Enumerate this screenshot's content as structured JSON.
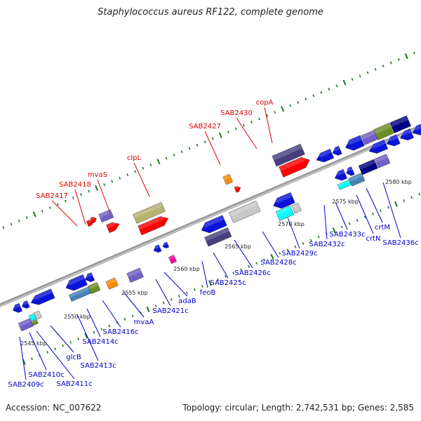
{
  "title": "Staphylococcus aureus RF122, complete genome",
  "accession": "Accession: NC_007622",
  "topology": "Topology: circular; Length: 2,742,531 bp; Genes: 2,585",
  "colors": {
    "backbone": "#8c8c8c",
    "tick": "#1f7a1f",
    "label_top": "#dd0000",
    "label_bottom": "#0000cc",
    "gene_blue": "#0a14d8",
    "gene_purple": "#7060c8",
    "gene_dark": "#46407e",
    "gene_red": "#ff0000",
    "gene_orange": "#ff8c00",
    "gene_olive": "#b4b46e",
    "gene_cyan": "#00ffff",
    "gene_gray": "#c8c8c8",
    "gene_navy": "#000080",
    "gene_steel": "#4682b4",
    "gene_green": "#6b8e23",
    "gene_magenta": "#ff00aa"
  },
  "scale_labels": [
    "2545 kbp",
    "2550 kbp",
    "2555 kbp",
    "2560 kbp",
    "2565 kbp",
    "2570 kbp",
    "2575 kbp",
    "2580 kbp"
  ],
  "top_genes": [
    "SAB2417",
    "SAB2418",
    "mvaS",
    "clpL",
    "SAB2427",
    "SAB2430",
    "copA"
  ],
  "bottom_genes": [
    "SAB2409c",
    "SAB2410c",
    "SAB2411c",
    "glcB",
    "SAB2413c",
    "SAB2414c",
    "SAB2416c",
    "mvaA",
    "SAB2421c",
    "adaB",
    "feoB",
    "SAB2425c",
    "SAB2426c",
    "SAB2428c",
    "SAB2429c",
    "SAB2432c",
    "SAB2433c",
    "crtN",
    "crtM",
    "SAB2436c"
  ]
}
